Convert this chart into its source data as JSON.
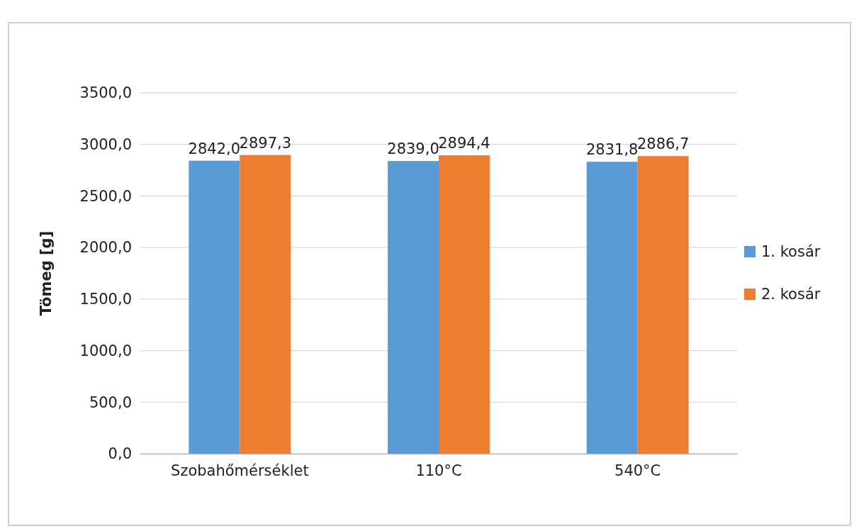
{
  "chart_data": {
    "type": "bar",
    "ylabel": "Tömeg [g]",
    "categories": [
      "Szobahőmérséklet",
      "110°C",
      "540°C"
    ],
    "series": [
      {
        "name": "1. kosár",
        "color": "#5b9bd5",
        "values": [
          2842.0,
          2839.0,
          2831.8
        ],
        "value_labels": [
          "2842,0",
          "2839,0",
          "2831,8"
        ]
      },
      {
        "name": "2. kosár",
        "color": "#ed7d31",
        "values": [
          2897.3,
          2894.4,
          2886.7
        ],
        "value_labels": [
          "2897,3",
          "2894,4",
          "2886,7"
        ]
      }
    ],
    "ylim": [
      0,
      3500
    ],
    "yticks": [
      {
        "value": 0,
        "label": "0,0"
      },
      {
        "value": 500,
        "label": "500,0"
      },
      {
        "value": 1000,
        "label": "1000,0"
      },
      {
        "value": 1500,
        "label": "1500,0"
      },
      {
        "value": 2000,
        "label": "2000,0"
      },
      {
        "value": 2500,
        "label": "2500,0"
      },
      {
        "value": 3000,
        "label": "3000,0"
      },
      {
        "value": 3500,
        "label": "3500,0"
      }
    ],
    "grid": "y",
    "legend": "right"
  }
}
